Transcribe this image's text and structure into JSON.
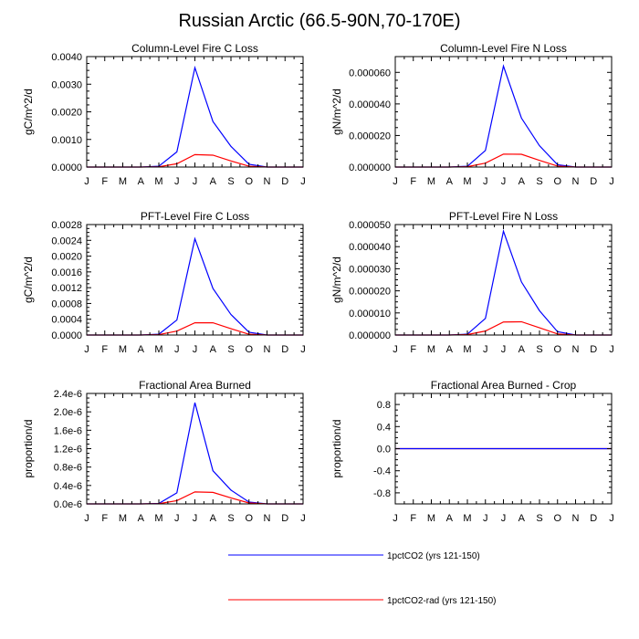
{
  "title": "Russian Arctic (66.5-90N,70-170E)",
  "colors": {
    "series1": "#0000ff",
    "series2": "#ff0000",
    "axis": "#000000"
  },
  "legend": {
    "items": [
      {
        "label": "1pctCO2 (yrs 121-150)",
        "color": "#0000ff"
      },
      {
        "label": "1pctCO2-rad (yrs 121-150)",
        "color": "#ff0000"
      }
    ]
  },
  "chart_data": [
    {
      "type": "line",
      "title": "Column-Level Fire C Loss",
      "xlabel": "",
      "ylabel": "gC/m^2/d",
      "categories": [
        "J",
        "F",
        "M",
        "A",
        "M",
        "J",
        "J",
        "A",
        "S",
        "O",
        "N",
        "D",
        "J"
      ],
      "ylim": [
        0,
        0.004
      ],
      "yticks": [
        "0.0000",
        "0.0010",
        "0.0020",
        "0.0030",
        "0.0040"
      ],
      "yticks_values": [
        0,
        0.001,
        0.002,
        0.003,
        0.004
      ],
      "series": [
        {
          "name": "1pctCO2 (yrs 121-150)",
          "values": [
            0,
            0,
            0,
            0,
            3e-05,
            0.00055,
            0.0036,
            0.00165,
            0.00075,
            0.0001,
            0,
            0,
            0
          ]
        },
        {
          "name": "1pctCO2-rad (yrs 121-150)",
          "values": [
            0,
            0,
            0,
            0,
            1e-05,
            0.00012,
            0.00045,
            0.00043,
            0.00022,
            3e-05,
            0,
            0,
            0
          ]
        }
      ]
    },
    {
      "type": "line",
      "title": "Column-Level Fire N Loss",
      "xlabel": "",
      "ylabel": "gN/m^2/d",
      "categories": [
        "J",
        "F",
        "M",
        "A",
        "M",
        "J",
        "J",
        "A",
        "S",
        "O",
        "N",
        "D",
        "J"
      ],
      "ylim": [
        0,
        7e-05
      ],
      "yticks": [
        "0.000000",
        "0.000020",
        "0.000040",
        "0.000060"
      ],
      "yticks_values": [
        0,
        2e-05,
        4e-05,
        6e-05
      ],
      "series": [
        {
          "name": "1pctCO2 (yrs 121-150)",
          "values": [
            0,
            0,
            0,
            0,
            5e-07,
            1.05e-05,
            6.4e-05,
            3.1e-05,
            1.35e-05,
            1.5e-06,
            0,
            0,
            0
          ]
        },
        {
          "name": "1pctCO2-rad (yrs 121-150)",
          "values": [
            0,
            0,
            0,
            0,
            2e-07,
            2.5e-06,
            8.2e-06,
            8.1e-06,
            4.2e-06,
            6e-07,
            0,
            0,
            0
          ]
        }
      ]
    },
    {
      "type": "line",
      "title": "PFT-Level Fire C Loss",
      "xlabel": "",
      "ylabel": "gC/m^2/d",
      "categories": [
        "J",
        "F",
        "M",
        "A",
        "M",
        "J",
        "J",
        "A",
        "S",
        "O",
        "N",
        "D",
        "J"
      ],
      "ylim": [
        0,
        0.0028
      ],
      "yticks": [
        "0.0000",
        "0.0004",
        "0.0008",
        "0.0012",
        "0.0016",
        "0.0020",
        "0.0024",
        "0.0028"
      ],
      "yticks_values": [
        0,
        0.0004,
        0.0008,
        0.0012,
        0.0016,
        0.002,
        0.0024,
        0.0028
      ],
      "series": [
        {
          "name": "1pctCO2 (yrs 121-150)",
          "values": [
            0,
            0,
            0,
            0,
            2e-05,
            0.00038,
            0.00244,
            0.00118,
            0.00052,
            7e-05,
            0,
            0,
            0
          ]
        },
        {
          "name": "1pctCO2-rad (yrs 121-150)",
          "values": [
            0,
            0,
            0,
            0,
            1e-05,
            0.0001,
            0.00031,
            0.00031,
            0.00016,
            2e-05,
            0,
            0,
            0
          ]
        }
      ]
    },
    {
      "type": "line",
      "title": "PFT-Level Fire N Loss",
      "xlabel": "",
      "ylabel": "gN/m^2/d",
      "categories": [
        "J",
        "F",
        "M",
        "A",
        "M",
        "J",
        "J",
        "A",
        "S",
        "O",
        "N",
        "D",
        "J"
      ],
      "ylim": [
        0,
        5e-05
      ],
      "yticks": [
        "0.000000",
        "0.000010",
        "0.000020",
        "0.000030",
        "0.000040",
        "0.000050"
      ],
      "yticks_values": [
        0,
        1e-05,
        2e-05,
        3e-05,
        4e-05,
        5e-05
      ],
      "series": [
        {
          "name": "1pctCO2 (yrs 121-150)",
          "values": [
            0,
            0,
            0,
            0,
            4e-07,
            7.5e-06,
            4.7e-05,
            2.4e-05,
            1.1e-05,
            1.5e-06,
            0,
            0,
            0
          ]
        },
        {
          "name": "1pctCO2-rad (yrs 121-150)",
          "values": [
            0,
            0,
            0,
            0,
            2e-07,
            1.8e-06,
            5.9e-06,
            6e-06,
            3.3e-06,
            5e-07,
            0,
            0,
            0
          ]
        }
      ]
    },
    {
      "type": "line",
      "title": "Fractional Area Burned",
      "xlabel": "",
      "ylabel": "proportion/d",
      "categories": [
        "J",
        "F",
        "M",
        "A",
        "M",
        "J",
        "J",
        "A",
        "S",
        "O",
        "N",
        "D",
        "J"
      ],
      "ylim": [
        0,
        2.4e-06
      ],
      "yticks": [
        "0.0e-6",
        "0.4e-6",
        "0.8e-6",
        "1.2e-6",
        "1.6e-6",
        "2.0e-6",
        "2.4e-6"
      ],
      "yticks_values": [
        0,
        4e-07,
        8e-07,
        1.2e-06,
        1.6e-06,
        2e-06,
        2.4e-06
      ],
      "series": [
        {
          "name": "1pctCO2 (yrs 121-150)",
          "values": [
            0,
            0,
            0,
            0,
            1e-08,
            2.4e-07,
            2.2e-06,
            7.2e-07,
            3e-07,
            4e-08,
            0,
            0,
            0
          ]
        },
        {
          "name": "1pctCO2-rad (yrs 121-150)",
          "values": [
            0,
            0,
            0,
            0,
            5e-09,
            7e-08,
            2.6e-07,
            2.5e-07,
            1.3e-07,
            2e-08,
            0,
            0,
            0
          ]
        }
      ]
    },
    {
      "type": "line",
      "title": "Fractional Area Burned - Crop",
      "xlabel": "",
      "ylabel": "proportion/d",
      "categories": [
        "J",
        "F",
        "M",
        "A",
        "M",
        "J",
        "J",
        "A",
        "S",
        "O",
        "N",
        "D",
        "J"
      ],
      "ylim": [
        -1.0,
        1.0
      ],
      "yticks": [
        "-0.8",
        "-0.4",
        "0.0",
        "0.4",
        "0.8"
      ],
      "yticks_values": [
        -0.8,
        -0.4,
        0,
        0.4,
        0.8
      ],
      "series": [
        {
          "name": "1pctCO2-rad (yrs 121-150)",
          "values": [
            0,
            0,
            0,
            0,
            0,
            0,
            0,
            0,
            0,
            0,
            0,
            0,
            0
          ]
        },
        {
          "name": "1pctCO2 (yrs 121-150)",
          "values": [
            0,
            0,
            0,
            0,
            0,
            0,
            0,
            0,
            0,
            0,
            0,
            0,
            0
          ]
        }
      ]
    }
  ]
}
